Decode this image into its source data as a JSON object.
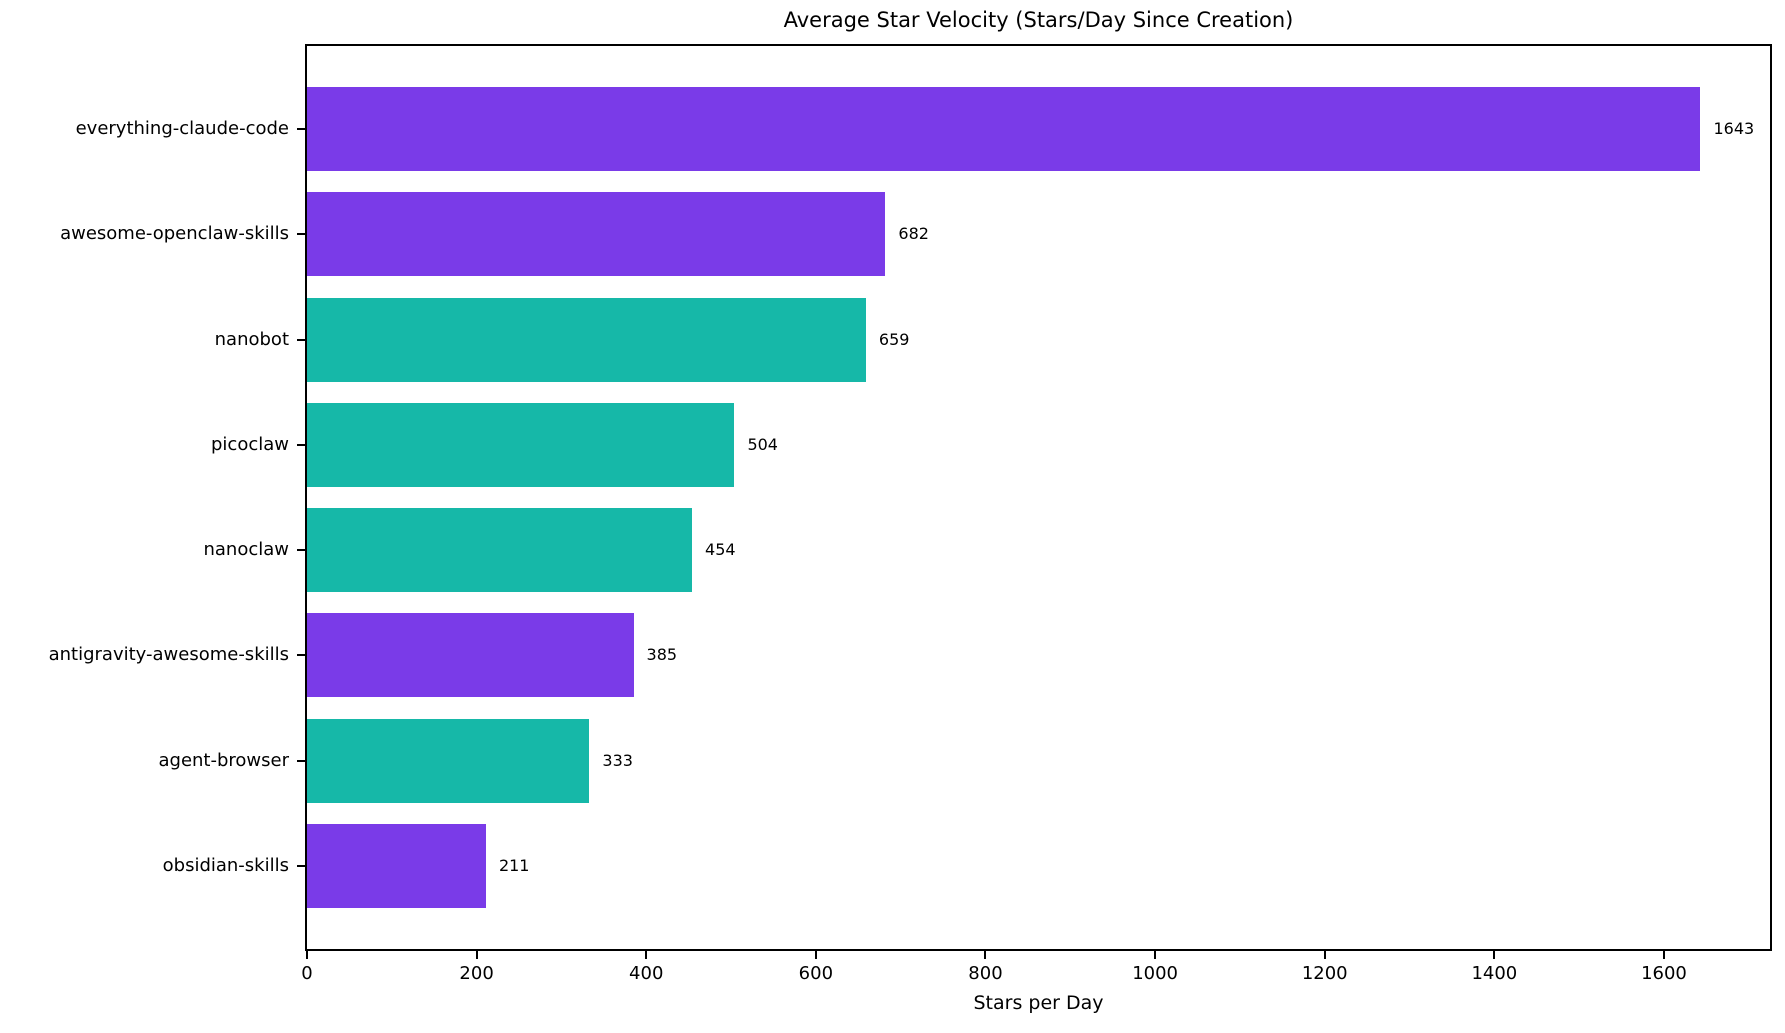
{
  "chart_data": {
    "type": "bar",
    "orientation": "horizontal",
    "title": "Average Star Velocity (Stars/Day Since Creation)",
    "xlabel": "Stars per Day",
    "ylabel": "",
    "categories": [
      "everything-claude-code",
      "awesome-openclaw-skills",
      "nanobot",
      "picoclaw",
      "nanoclaw",
      "antigravity-awesome-skills",
      "agent-browser",
      "obsidian-skills"
    ],
    "values": [
      1643,
      682,
      659,
      504,
      454,
      385,
      333,
      211
    ],
    "value_labels": [
      "1643",
      "682",
      "659",
      "504",
      "454",
      "385",
      "333",
      "211"
    ],
    "bar_colors": [
      "#7a3be8",
      "#7a3be8",
      "#16b8a8",
      "#16b8a8",
      "#16b8a8",
      "#7a3be8",
      "#16b8a8",
      "#7a3be8"
    ],
    "color_legend": {
      "purple": "#7a3be8",
      "teal": "#16b8a8"
    },
    "xlim": [
      0,
      1725
    ],
    "xticks": [
      0,
      200,
      400,
      600,
      800,
      1000,
      1200,
      1400,
      1600
    ],
    "xtick_labels": [
      "0",
      "200",
      "400",
      "600",
      "800",
      "1000",
      "1200",
      "1400",
      "1600"
    ],
    "grid": false,
    "legend": "none",
    "background_color": "#ffffff",
    "spine_color": "#000000",
    "text_color": "#000000"
  }
}
